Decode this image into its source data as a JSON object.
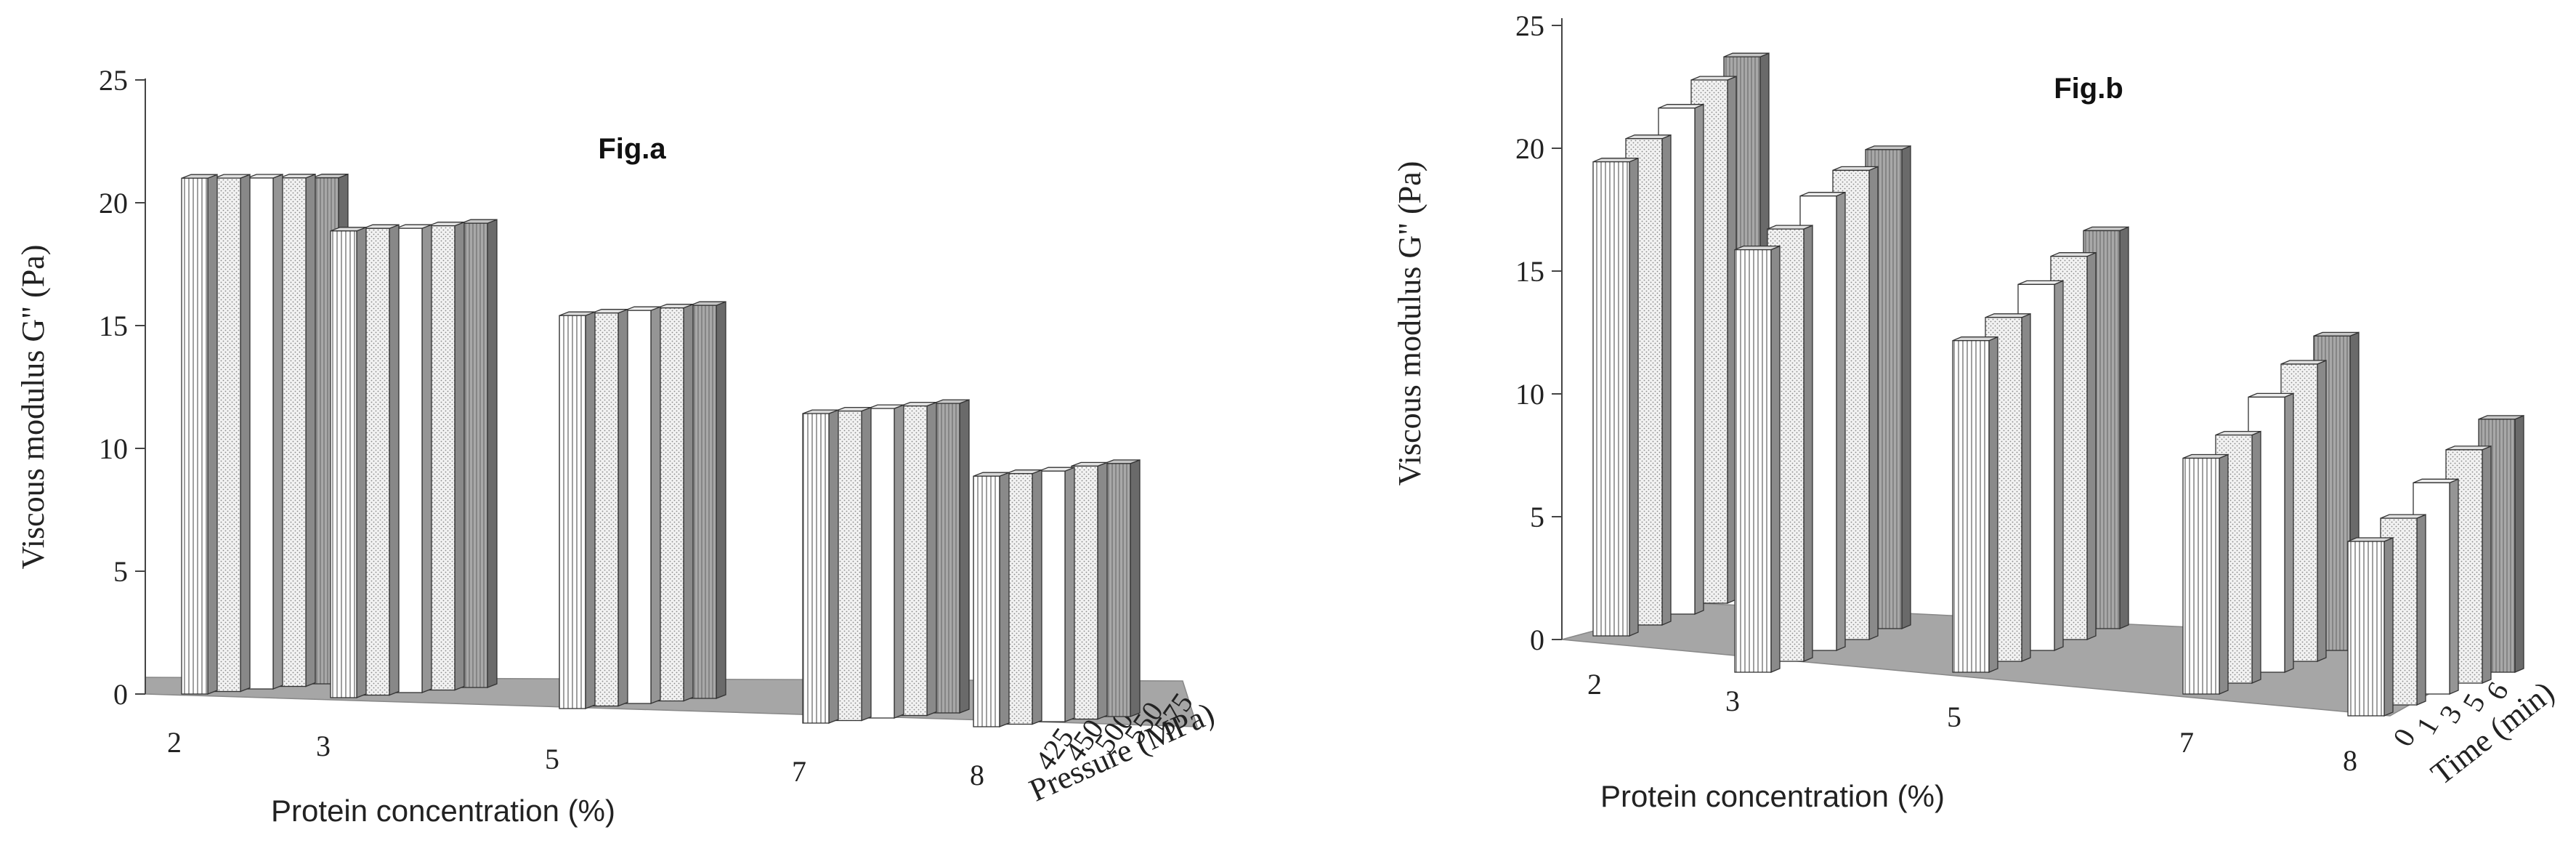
{
  "chart_data": [
    {
      "type": "bar",
      "title": "Fig.a",
      "xlabel": "Protein concentration (%)",
      "ylabel": "Viscous modulus G\" (Pa)",
      "zlabel": "Pressure (MPa)",
      "ylim": [
        0,
        25
      ],
      "yticks": [
        "0",
        "5",
        "10",
        "15",
        "20",
        "25"
      ],
      "categories": [
        "2",
        "3",
        "5",
        "7",
        "8"
      ],
      "series": [
        {
          "name": "425",
          "values": [
            21.0,
            19.0,
            16.0,
            12.6,
            10.2
          ]
        },
        {
          "name": "450",
          "values": [
            20.9,
            19.0,
            16.0,
            12.6,
            10.2
          ]
        },
        {
          "name": "500",
          "values": [
            20.8,
            18.9,
            16.0,
            12.6,
            10.2
          ]
        },
        {
          "name": "550",
          "values": [
            20.7,
            18.9,
            16.0,
            12.6,
            10.3
          ]
        },
        {
          "name": "575",
          "values": [
            20.6,
            18.9,
            16.0,
            12.6,
            10.3
          ]
        }
      ],
      "legend": "none",
      "grid": false
    },
    {
      "type": "bar",
      "title": "Fig.b",
      "xlabel": "Protein concentration (%)",
      "ylabel": "Viscous modulus G\" (Pa)",
      "zlabel": "Time (min)",
      "ylim": [
        0,
        25
      ],
      "yticks": [
        "0",
        "5",
        "10",
        "15",
        "20",
        "25"
      ],
      "categories": [
        "2",
        "3",
        "5",
        "7",
        "8"
      ],
      "series": [
        {
          "name": "0",
          "values": [
            19.3,
            17.2,
            13.5,
            9.6,
            7.1
          ]
        },
        {
          "name": "1",
          "values": [
            19.8,
            17.6,
            14.0,
            10.1,
            7.6
          ]
        },
        {
          "name": "3",
          "values": [
            20.6,
            18.5,
            14.9,
            11.2,
            8.6
          ]
        },
        {
          "name": "5",
          "values": [
            21.3,
            19.1,
            15.6,
            12.1,
            9.5
          ]
        },
        {
          "name": "6",
          "values": [
            21.8,
            19.5,
            16.2,
            12.8,
            10.3
          ]
        }
      ],
      "legend": "none",
      "grid": false
    }
  ]
}
